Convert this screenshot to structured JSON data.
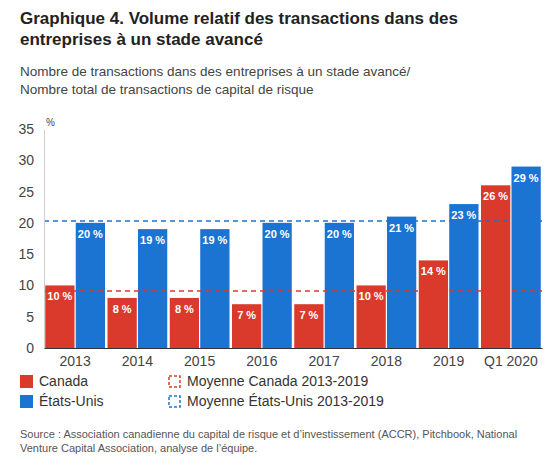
{
  "chart_data": {
    "type": "bar",
    "title": "Graphique 4. Volume relatif des transactions dans des entreprises à un stade avancé",
    "subtitle": "Nombre de transactions dans des entreprises à un stade avancé/Nombre total de transactions de capital de risque",
    "y_label": "%",
    "source": "Source : Association canadienne du capital de risque et d’investissement (ACCR), Pitchbook, National Venture Capital Association, analyse de l’équipe.",
    "categories": [
      "2013",
      "2014",
      "2015",
      "2016",
      "2017",
      "2018",
      "2019",
      "Q1 2020"
    ],
    "series": [
      {
        "name": "Canada",
        "color": "#d93a2b",
        "values": [
          10,
          8,
          8,
          7,
          7,
          10,
          14,
          26
        ],
        "value_labels": [
          "10 %",
          "8 %",
          "8 %",
          "7 %",
          "7 %",
          "10 %",
          "14 %",
          "26 %"
        ]
      },
      {
        "name": "États-Unis",
        "color": "#1b74d1",
        "values": [
          20,
          19,
          19,
          20,
          20,
          21,
          23,
          29
        ],
        "value_labels": [
          "20 %",
          "19 %",
          "19 %",
          "20 %",
          "20 %",
          "21 %",
          "23 %",
          "29 %"
        ]
      }
    ],
    "reference_lines": [
      {
        "name": "Moyenne Canada 2013-2019",
        "value": 9.1,
        "color": "#d93a2b",
        "line_style": "dashed"
      },
      {
        "name": "Moyenne États-Unis 2013-2019",
        "value": 20.3,
        "color": "#1b74d1",
        "line_style": "dashed"
      }
    ],
    "ylim": [
      0,
      35
    ],
    "yticks": [
      0,
      5,
      10,
      15,
      20,
      25,
      30,
      35
    ],
    "grid": false,
    "data_labels": true,
    "legend": "bottom"
  }
}
